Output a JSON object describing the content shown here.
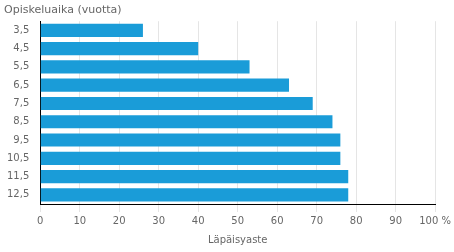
{
  "chart_data": {
    "type": "bar",
    "orientation": "horizontal",
    "title": "Opiskeluaika (vuotta)",
    "xlabel": "Läpäisyaste",
    "categories": [
      "3,5",
      "4,5",
      "5,5",
      "6,5",
      "7,5",
      "8,5",
      "9,5",
      "10,5",
      "11,5",
      "12,5"
    ],
    "values": [
      26,
      40,
      53,
      63,
      69,
      74,
      76,
      76,
      78,
      78
    ],
    "color": "#1a9cd8",
    "xlim": [
      0,
      100
    ],
    "xticks": [
      0,
      10,
      20,
      30,
      40,
      50,
      60,
      70,
      80,
      90,
      {
        "value": 100,
        "label": "100 %"
      }
    ],
    "grid": true
  }
}
